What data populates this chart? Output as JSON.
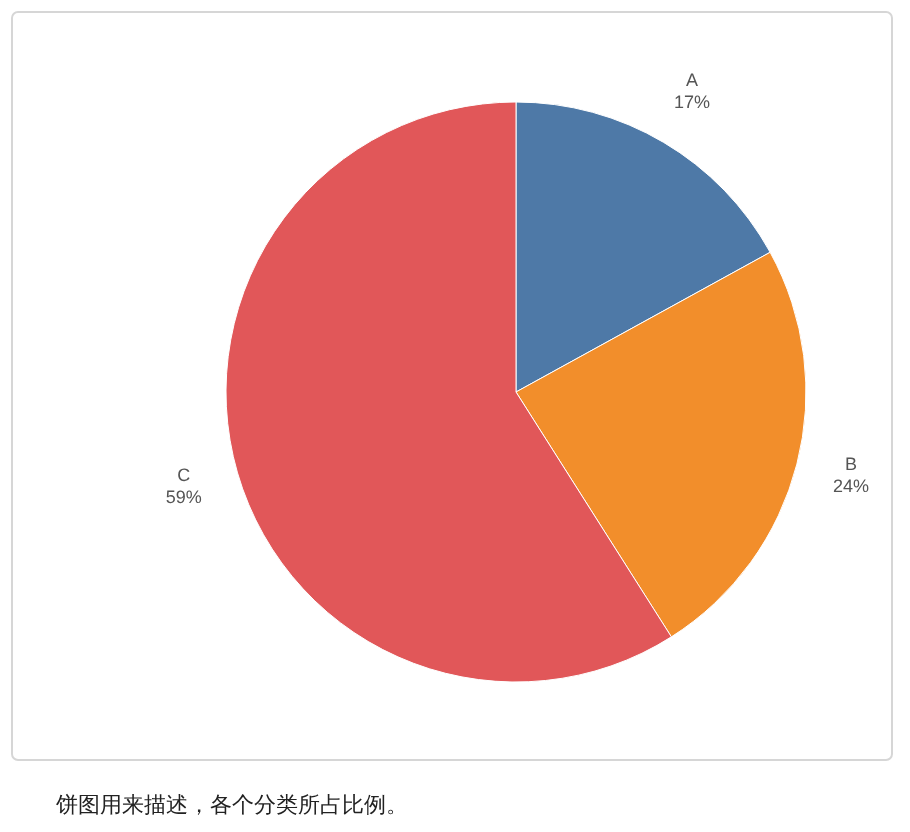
{
  "chart_data": {
    "type": "pie",
    "categories": [
      "A",
      "B",
      "C"
    ],
    "values": [
      17,
      24,
      59
    ],
    "colors": [
      "#4e79a7",
      "#f28e2b",
      "#e15759"
    ],
    "value_labels": [
      "17%",
      "24%",
      "59%"
    ],
    "annotations": [
      "饼图用来描述，各个分类所占比例。"
    ]
  }
}
